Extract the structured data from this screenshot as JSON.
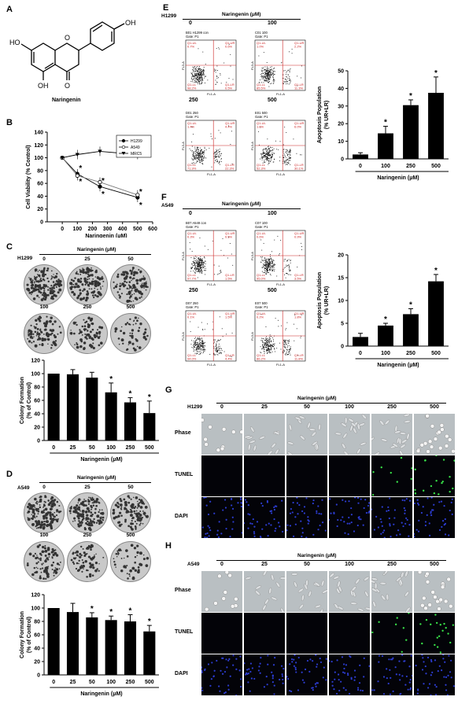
{
  "panels": {
    "A": {
      "letter": "A",
      "compound": "Naringenin"
    },
    "B": {
      "letter": "B",
      "chart_data": {
        "type": "line",
        "ylabel": "Cell Viability (% Control)",
        "xlabel": "Naringenin (μM)",
        "xlim": [
          -100,
          600
        ],
        "ylim": [
          0,
          140
        ],
        "xticks": [
          0,
          100,
          200,
          300,
          400,
          500,
          600
        ],
        "yticks": [
          0,
          20,
          40,
          60,
          80,
          100,
          120,
          140
        ],
        "x": [
          0,
          100,
          250,
          500
        ],
        "series": [
          {
            "name": "H1299",
            "values": [
              100,
              75,
              55,
              38
            ],
            "marker": "circle-filled"
          },
          {
            "name": "A549",
            "values": [
              100,
              72,
              62,
              42
            ],
            "marker": "circle-open"
          },
          {
            "name": "MRC5",
            "values": [
              100,
              105,
              110,
              105
            ],
            "marker": "triangle-down"
          }
        ],
        "significance": [
          "",
          "*",
          "*",
          "*"
        ]
      }
    },
    "C": {
      "letter": "C",
      "cell_line": "H1299",
      "header": "Naringenin (μM)",
      "doses_top": [
        "0",
        "25",
        "50"
      ],
      "doses_bottom": [
        "100",
        "250",
        "500"
      ],
      "chart_data": {
        "type": "bar",
        "categories": [
          "0",
          "25",
          "50",
          "100",
          "250",
          "500"
        ],
        "values": [
          100,
          99,
          94,
          72,
          57,
          41
        ],
        "errors": [
          0,
          7,
          8,
          14,
          7,
          18
        ],
        "significance": [
          "",
          "",
          "",
          "*",
          "*",
          "*"
        ],
        "ylabel": "Colony Formation (% of Control)",
        "xlabel": "Naringenin (μM)",
        "ylim": [
          0,
          120
        ],
        "yticks": [
          0,
          20,
          40,
          60,
          80,
          100,
          120
        ]
      }
    },
    "D": {
      "letter": "D",
      "cell_line": "A549",
      "header": "Naringenin (μM)",
      "doses_top": [
        "0",
        "25",
        "50"
      ],
      "doses_bottom": [
        "100",
        "250",
        "500"
      ],
      "chart_data": {
        "type": "bar",
        "categories": [
          "0",
          "25",
          "50",
          "100",
          "250",
          "500"
        ],
        "values": [
          100,
          94,
          86,
          82,
          80,
          65
        ],
        "errors": [
          0,
          13,
          7,
          6,
          10,
          9
        ],
        "significance": [
          "",
          "",
          "*",
          "*",
          "*",
          "*"
        ],
        "ylabel": "Colony Formation (% of Control)",
        "xlabel": "Naringenin (μM)",
        "ylim": [
          0,
          120
        ],
        "yticks": [
          0,
          20,
          40,
          60,
          80,
          100,
          120
        ]
      }
    },
    "E": {
      "letter": "E",
      "cell_line": "H1299",
      "header": "Naringenin (μM)",
      "doses": [
        "0",
        "100",
        "250",
        "500"
      ],
      "plot_titles": [
        "B01 H1299 con",
        "C01 100",
        "D01 250",
        "E01 500"
      ],
      "gate": "Gate: P1",
      "quadrants": [
        [
          "0.7%",
          "0.6%",
          "98.2%",
          "0.5%"
        ],
        [
          "1.0%",
          "2.2%",
          "85.5%",
          "11.3%"
        ],
        [
          "1.4%",
          "4.4%",
          "71.9%",
          "22.3%"
        ],
        [
          "1.6%",
          "6.0%",
          "52.3%",
          "30.1%"
        ]
      ],
      "quad_names": [
        "Q1-UL",
        "Q1-UR",
        "Q1-LL",
        "Q1-LR"
      ],
      "axis_x": "FL1-A",
      "axis_y": "FL3-A",
      "chart_data": {
        "type": "bar",
        "categories": [
          "0",
          "100",
          "250",
          "500"
        ],
        "values": [
          2.5,
          14.5,
          30.5,
          37.5
        ],
        "errors": [
          1,
          4,
          3,
          9
        ],
        "significance": [
          "",
          "*",
          "*",
          "*"
        ],
        "ylabel": "Apoptosis Population (% UR+LR)",
        "xlabel": "Naringenin (μM)",
        "ylim": [
          0,
          50
        ],
        "yticks": [
          0,
          10,
          20,
          30,
          40,
          50
        ]
      }
    },
    "F": {
      "letter": "F",
      "cell_line": "A549",
      "header": "Naringenin (μM)",
      "doses": [
        "0",
        "100",
        "250",
        "500"
      ],
      "plot_titles": [
        "B07 A549 con",
        "C07 100",
        "D07 250",
        "E07 500"
      ],
      "gate": "Gate: P1",
      "quadrants": [
        [
          "0.3%",
          "0.5%",
          "97.7%",
          "1.5%"
        ],
        [
          "0.6%",
          "0.9%",
          "95.0%",
          "3.5%"
        ],
        [
          "0.1%",
          "1.5%",
          "94.0%",
          "4.4%"
        ],
        [
          "0.2%",
          "1.8%",
          "86.2%",
          "11.8%"
        ]
      ],
      "quad_names": [
        "Q1-UL",
        "Q1-UR",
        "Q1-LL",
        "Q1-LR"
      ],
      "axis_x": "FL1-A",
      "axis_y": "FL3-A",
      "chart_data": {
        "type": "bar",
        "categories": [
          "0",
          "100",
          "250",
          "500"
        ],
        "values": [
          2,
          4.5,
          7,
          14.2
        ],
        "errors": [
          0.8,
          0.5,
          1.2,
          1.5
        ],
        "significance": [
          "",
          "*",
          "*",
          "*"
        ],
        "ylabel": "Apoptosis Population (% UR+LR)",
        "xlabel": "Naringenin (μM)",
        "ylim": [
          0,
          20
        ],
        "yticks": [
          0,
          5,
          10,
          15,
          20
        ]
      }
    },
    "G": {
      "letter": "G",
      "cell_line": "H1299",
      "header": "Naringenin (μM)",
      "doses": [
        "0",
        "25",
        "50",
        "100",
        "250",
        "500"
      ],
      "rows": [
        "Phase",
        "TUNEL",
        "DAPI"
      ]
    },
    "H": {
      "letter": "H",
      "cell_line": "A549",
      "header": "Naringenin (μM)",
      "doses": [
        "0",
        "25",
        "50",
        "100",
        "250",
        "500"
      ],
      "rows": [
        "Phase",
        "TUNEL",
        "DAPI"
      ]
    }
  },
  "colors": {
    "phase": "#b9bfc2",
    "dark": "#030308",
    "tunel": "#38e048",
    "dapi": "#2c3cd0",
    "flow_line": "#cc2222"
  }
}
